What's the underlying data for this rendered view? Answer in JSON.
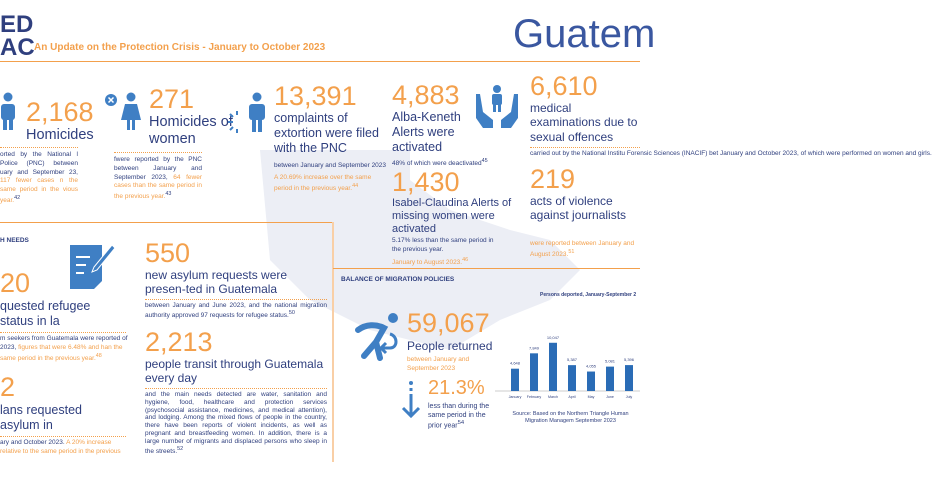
{
  "header": {
    "logo_line1": "ED",
    "logo_line2": "AC",
    "subtitle": "An Update on the Protection Crisis - January to October 2023",
    "country": "Guatem"
  },
  "stats": {
    "homicides": {
      "value": "2,168",
      "label": "Homicides",
      "desc": "orted by the National l Police (PNC) between uary and September 23,",
      "desc_hl": "117 fewer cases n the same period in the vious year.",
      "ref": "42"
    },
    "women": {
      "value": "271",
      "label": "Homicides of women",
      "desc": "fwere reported by the PNC between January and September 2023,",
      "desc_hl": "64 fewer cases than the same period in the previous year.",
      "ref": "43"
    },
    "extortion": {
      "value": "13,391",
      "label": "complaints of extortion were filed with the PNC",
      "desc": "between January and September 2023",
      "desc_hl": "A 20.69% increase over the same period in the previous year.",
      "ref": "44"
    },
    "alba": {
      "value": "4,883",
      "label": "Alba-Keneth Alerts were activated",
      "desc": "48% of which were deactivated",
      "ref": "45"
    },
    "isabel": {
      "value": "1,430",
      "label": "Isabel-Claudina Alerts of missing women were activated",
      "desc": "5.17% less than the same period in the previous year.",
      "desc_hl": "January to August 2023.",
      "ref": "46"
    },
    "medical": {
      "value": "6,610",
      "label": "medical examinations due to sexual offences",
      "desc": "carried out by the National Institu Forensic Sciences (INACIF) bet January and October 2023, of which were performed on women and girls."
    },
    "journalists": {
      "value": "219",
      "label": "acts of violence against journalists",
      "desc_hl": "were reported between January and August 2023.",
      "ref": "51"
    }
  },
  "needs": {
    "heading": "H NEEDS",
    "refugee": {
      "value": "20",
      "label": "quested refugee status in la",
      "desc": "m seekers from Guatemala were reported of 2023,",
      "desc_hl": "figures that were 6.48% and han the same period in the previous year.",
      "ref": "48"
    },
    "asylum_out": {
      "value": "2",
      "label": "lans requested asylum in",
      "desc": "ary and October 2023.",
      "desc_hl": "A 20% increase relative to the same period in the previous"
    },
    "asylum_in": {
      "value": "550",
      "label": "new asylum requests were presen-ted in Guatemala",
      "desc": "between January and June 2023, and the national migration authority approved 97 requests for refugee status.",
      "ref": "50"
    },
    "transit": {
      "value": "2,213",
      "label": "people transit through Guatemala every day",
      "desc": "and the main needs detected are water, sanitation and hygiene, food, healthcare and protection services (psychosocial assistance, medicines, and medical attention), and lodging. Among the mixed flows of people in the country, there have been reports of violent incidents, as well as pregnant and breastfeeding women. In addition, there is a large number of migrants and displaced persons who sleep in the streets.",
      "ref": "52"
    }
  },
  "migration": {
    "heading": "BALANCE OF MIGRATION POLICIES",
    "returned_value": "59,067",
    "returned_label": "People returned",
    "returned_desc": "between January and September 2023",
    "pct": "21.3%",
    "pct_desc": "less than during the same period in the prior year",
    "ref": "54"
  },
  "chart_data": {
    "type": "bar",
    "title": "Persons deported, January-September 2",
    "categories": [
      "January",
      "February",
      "March",
      "April",
      "May",
      "June",
      "July"
    ],
    "values": [
      4648,
      7849,
      10047,
      5387,
      4055,
      5081,
      5396
    ],
    "value_labels": [
      "4,648",
      "7,849",
      "10,047",
      "5,387",
      "4,055",
      "5,081",
      "5,396"
    ],
    "source": "Source: Based on the Northern Triangle Human Migration Managem September 2023",
    "bar_color": "#2a6cb6"
  },
  "colors": {
    "accent": "#f3a04c",
    "navy": "#2f3f7e",
    "icon_blue": "#3f7fc4"
  }
}
